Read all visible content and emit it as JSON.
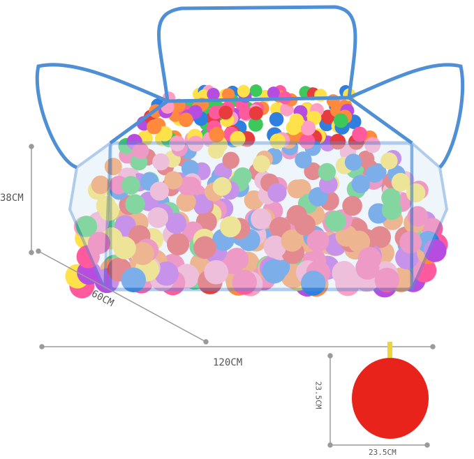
{
  "product": {
    "height_label": "38CM",
    "depth_label": "60CM",
    "width_label": "120CM",
    "bag_height_label": "23.5CM",
    "bag_width_label": "23.5CM"
  },
  "colors": {
    "frame": "#4f8fd6",
    "mesh": "#dbe9f7",
    "bag": "#e8231b",
    "bag_tab": "#f2d23a",
    "dimension_line": "#9a9a9a",
    "balls": [
      "#ff5a9e",
      "#ff8a3d",
      "#ffe14a",
      "#3cc85a",
      "#2f7fe0",
      "#e83c3c",
      "#b74de0",
      "#ff9ec4"
    ]
  }
}
